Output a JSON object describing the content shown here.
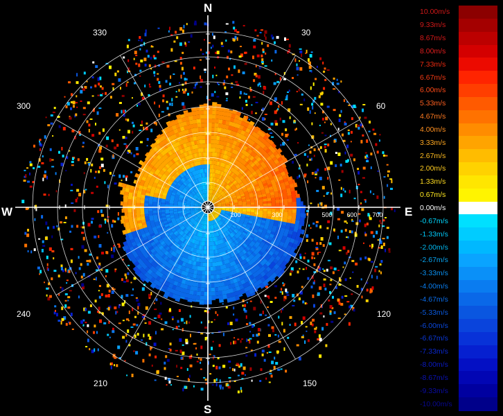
{
  "radar": {
    "compass": {
      "north": "N",
      "east": "E",
      "south": "S",
      "west": "W"
    },
    "bearings": [
      "30",
      "60",
      "120",
      "150",
      "210",
      "240",
      "300",
      "330"
    ],
    "range_labels": [
      "200",
      "300",
      "500",
      "600",
      "700"
    ],
    "crosshair_color": "#ffffff",
    "ring_color": "#ffffff",
    "background": "#000000"
  },
  "legend": {
    "items": [
      {
        "label": "10.00m/s",
        "color": "#8c0000",
        "text_color": "#d01818"
      },
      {
        "label": "9.33m/s",
        "color": "#a40000",
        "text_color": "#d01818"
      },
      {
        "label": "8.67m/s",
        "color": "#bc0000",
        "text_color": "#d81818"
      },
      {
        "label": "8.00m/s",
        "color": "#d40000",
        "text_color": "#e01e1e"
      },
      {
        "label": "7.33m/s",
        "color": "#ec0a00",
        "text_color": "#ea2a10"
      },
      {
        "label": "6.67m/s",
        "color": "#ff2400",
        "text_color": "#f43a14"
      },
      {
        "label": "6.00m/s",
        "color": "#ff3e00",
        "text_color": "#ff4a18"
      },
      {
        "label": "5.33m/s",
        "color": "#ff5a00",
        "text_color": "#ff6020"
      },
      {
        "label": "4.67m/s",
        "color": "#ff7200",
        "text_color": "#ff7a20"
      },
      {
        "label": "4.00m/s",
        "color": "#ff8c00",
        "text_color": "#ff9020"
      },
      {
        "label": "3.33m/s",
        "color": "#ffa400",
        "text_color": "#ffa820"
      },
      {
        "label": "2.67m/s",
        "color": "#ffbc00",
        "text_color": "#ffbc20"
      },
      {
        "label": "2.00m/s",
        "color": "#ffd200",
        "text_color": "#ffcc20"
      },
      {
        "label": "1.33m/s",
        "color": "#ffe600",
        "text_color": "#ffdc20"
      },
      {
        "label": "0.67m/s",
        "color": "#fff400",
        "text_color": "#ffe820"
      },
      {
        "label": "0.00m/s",
        "color": "#ffffff",
        "text_color": "#ffffff"
      },
      {
        "label": "-0.67m/s",
        "color": "#00e0ff",
        "text_color": "#00d8ff"
      },
      {
        "label": "-1.33m/s",
        "color": "#00ccff",
        "text_color": "#00c8f8"
      },
      {
        "label": "-2.00m/s",
        "color": "#00b8ff",
        "text_color": "#00b8f0"
      },
      {
        "label": "-2.67m/s",
        "color": "#0aa4ff",
        "text_color": "#08a4f0"
      },
      {
        "label": "-3.33m/s",
        "color": "#0a90f8",
        "text_color": "#0a90f0"
      },
      {
        "label": "-4.00m/s",
        "color": "#0a7cf0",
        "text_color": "#0a7ef0"
      },
      {
        "label": "-4.67m/s",
        "color": "#0a68e8",
        "text_color": "#0a6ce8"
      },
      {
        "label": "-5.33m/s",
        "color": "#0a56e0",
        "text_color": "#0a5ae0"
      },
      {
        "label": "-6.00m/s",
        "color": "#0a44dc",
        "text_color": "#0a48dc"
      },
      {
        "label": "-6.67m/s",
        "color": "#0832d8",
        "text_color": "#0a38d8"
      },
      {
        "label": "-7.33m/s",
        "color": "#0620d0",
        "text_color": "#0a28d0"
      },
      {
        "label": "-8.00m/s",
        "color": "#0410c4",
        "text_color": "#0a1ac4"
      },
      {
        "label": "-8.67m/s",
        "color": "#0206b4",
        "text_color": "#0a12b4"
      },
      {
        "label": "-9.33m/s",
        "color": "#0000a0",
        "text_color": "#0a0ca4"
      },
      {
        "label": "-10.00m/s",
        "color": "#00008a",
        "text_color": "#08088e"
      }
    ]
  }
}
